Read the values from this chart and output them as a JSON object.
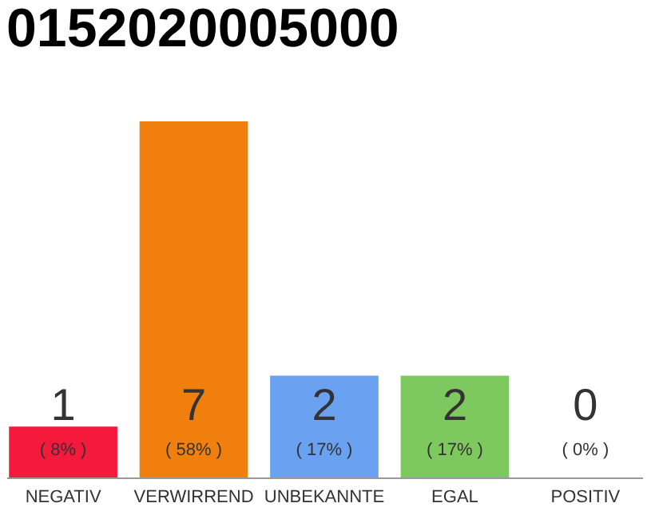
{
  "chart_data": {
    "type": "bar",
    "title": "0152020005000",
    "categories": [
      "NEGATIV",
      "VERWIRREND",
      "UNBEKANNTE",
      "EGAL",
      "POSITIV"
    ],
    "values": [
      1,
      7,
      2,
      2,
      0
    ],
    "colors": [
      "#f5193c",
      "#f07f0e",
      "#6aa1f0",
      "#7ec95f",
      "#cccccc"
    ],
    "data_labels": true,
    "annotations": [
      "( 8% )",
      "( 58% )",
      "( 17% )",
      "( 17% )",
      "( 0% )"
    ]
  }
}
